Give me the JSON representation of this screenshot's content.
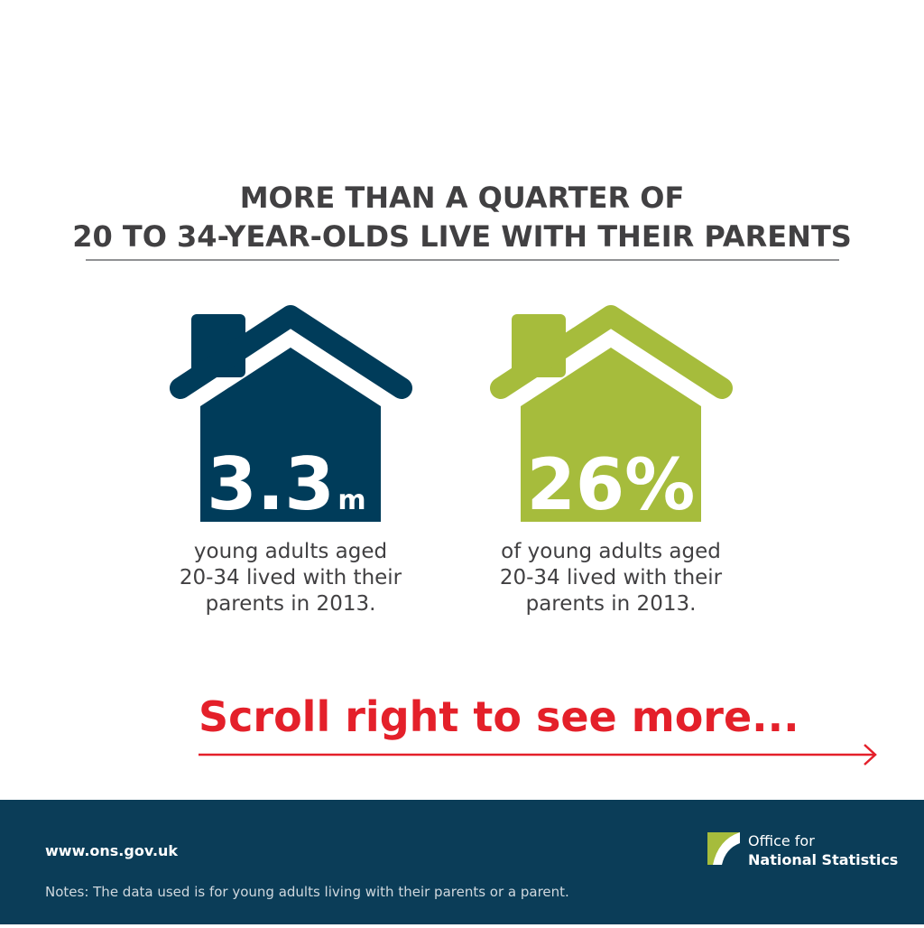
{
  "header": {
    "title_lines": [
      "MORE THAN A QUARTER OF",
      "20 TO 34-YEAR-OLDS LIVE WITH THEIR PARENTS"
    ]
  },
  "stats": [
    {
      "figure": "3.3",
      "unit": "m",
      "caption_lines": [
        "young adults aged",
        "20-34 lived with their",
        "parents in 2013."
      ]
    },
    {
      "figure": "26%",
      "caption_lines": [
        "of young adults aged",
        "20-34 lived with their",
        "parents in 2013."
      ]
    }
  ],
  "call_to_action": "Scroll right to see more...",
  "footer": {
    "website": "www.ons.gov.uk",
    "logo_lines": [
      "Office for",
      "National Statistics"
    ],
    "notes": "Notes: The data used is for young adults living with their parents or a parent."
  }
}
